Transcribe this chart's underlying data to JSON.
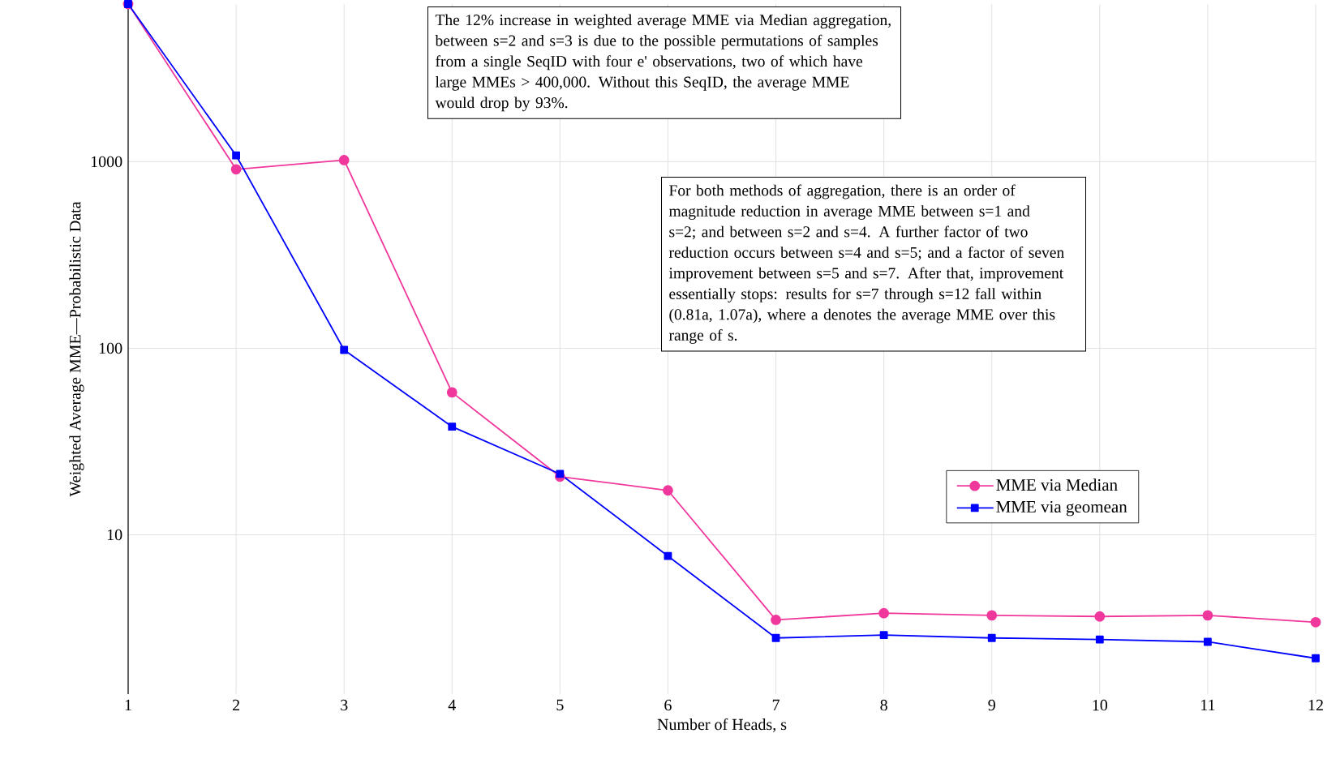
{
  "chart_data": {
    "type": "line",
    "xlabel": "Number of Heads, s",
    "ylabel": "Weighted Average MME—Probabilistic Data",
    "x": [
      1,
      2,
      3,
      4,
      5,
      6,
      7,
      8,
      9,
      10,
      11,
      12
    ],
    "series": [
      {
        "name": "MME via Median",
        "color": "#f0389c",
        "marker": "circle",
        "values": [
          7000,
          910,
          1020,
          58,
          20.5,
          17.3,
          3.5,
          3.8,
          3.7,
          3.65,
          3.7,
          3.4
        ]
      },
      {
        "name": "MME via geomean",
        "color": "#0000ff",
        "marker": "square",
        "values": [
          7000,
          1080,
          98,
          38,
          21.2,
          7.7,
          2.8,
          2.9,
          2.8,
          2.75,
          2.67,
          2.18
        ]
      }
    ],
    "log": "y",
    "xlim": [
      1,
      12
    ],
    "ylim": [
      1.4,
      7000
    ],
    "xticks": [
      1,
      2,
      3,
      4,
      5,
      6,
      7,
      8,
      9,
      10,
      11,
      12
    ],
    "yticks": [
      10,
      100,
      1000
    ],
    "grid": true,
    "legend": "right",
    "line_style": "solid",
    "annotations": [
      "The 12% increase in weighted average MME via Median aggregation, between s=2 and s=3 is due to the possible permutations of samples from a single SeqID with four e' observations, two of which have large MMEs > 400,000. Without this SeqID, the average MME would drop by 93%.",
      "For both methods of aggregation, there is an order of magnitude reduction in average MME between s=1 and s=2; and between s=2 and s=4.  A further factor of two reduction occurs between s=4 and s=5; and a factor of seven improvement between s=5 and s=7.  After that, improvement essentially stops:  results for s=7 through s=12 fall within (0.81a, 1.07a), where a denotes the average MME over this range of s."
    ]
  }
}
